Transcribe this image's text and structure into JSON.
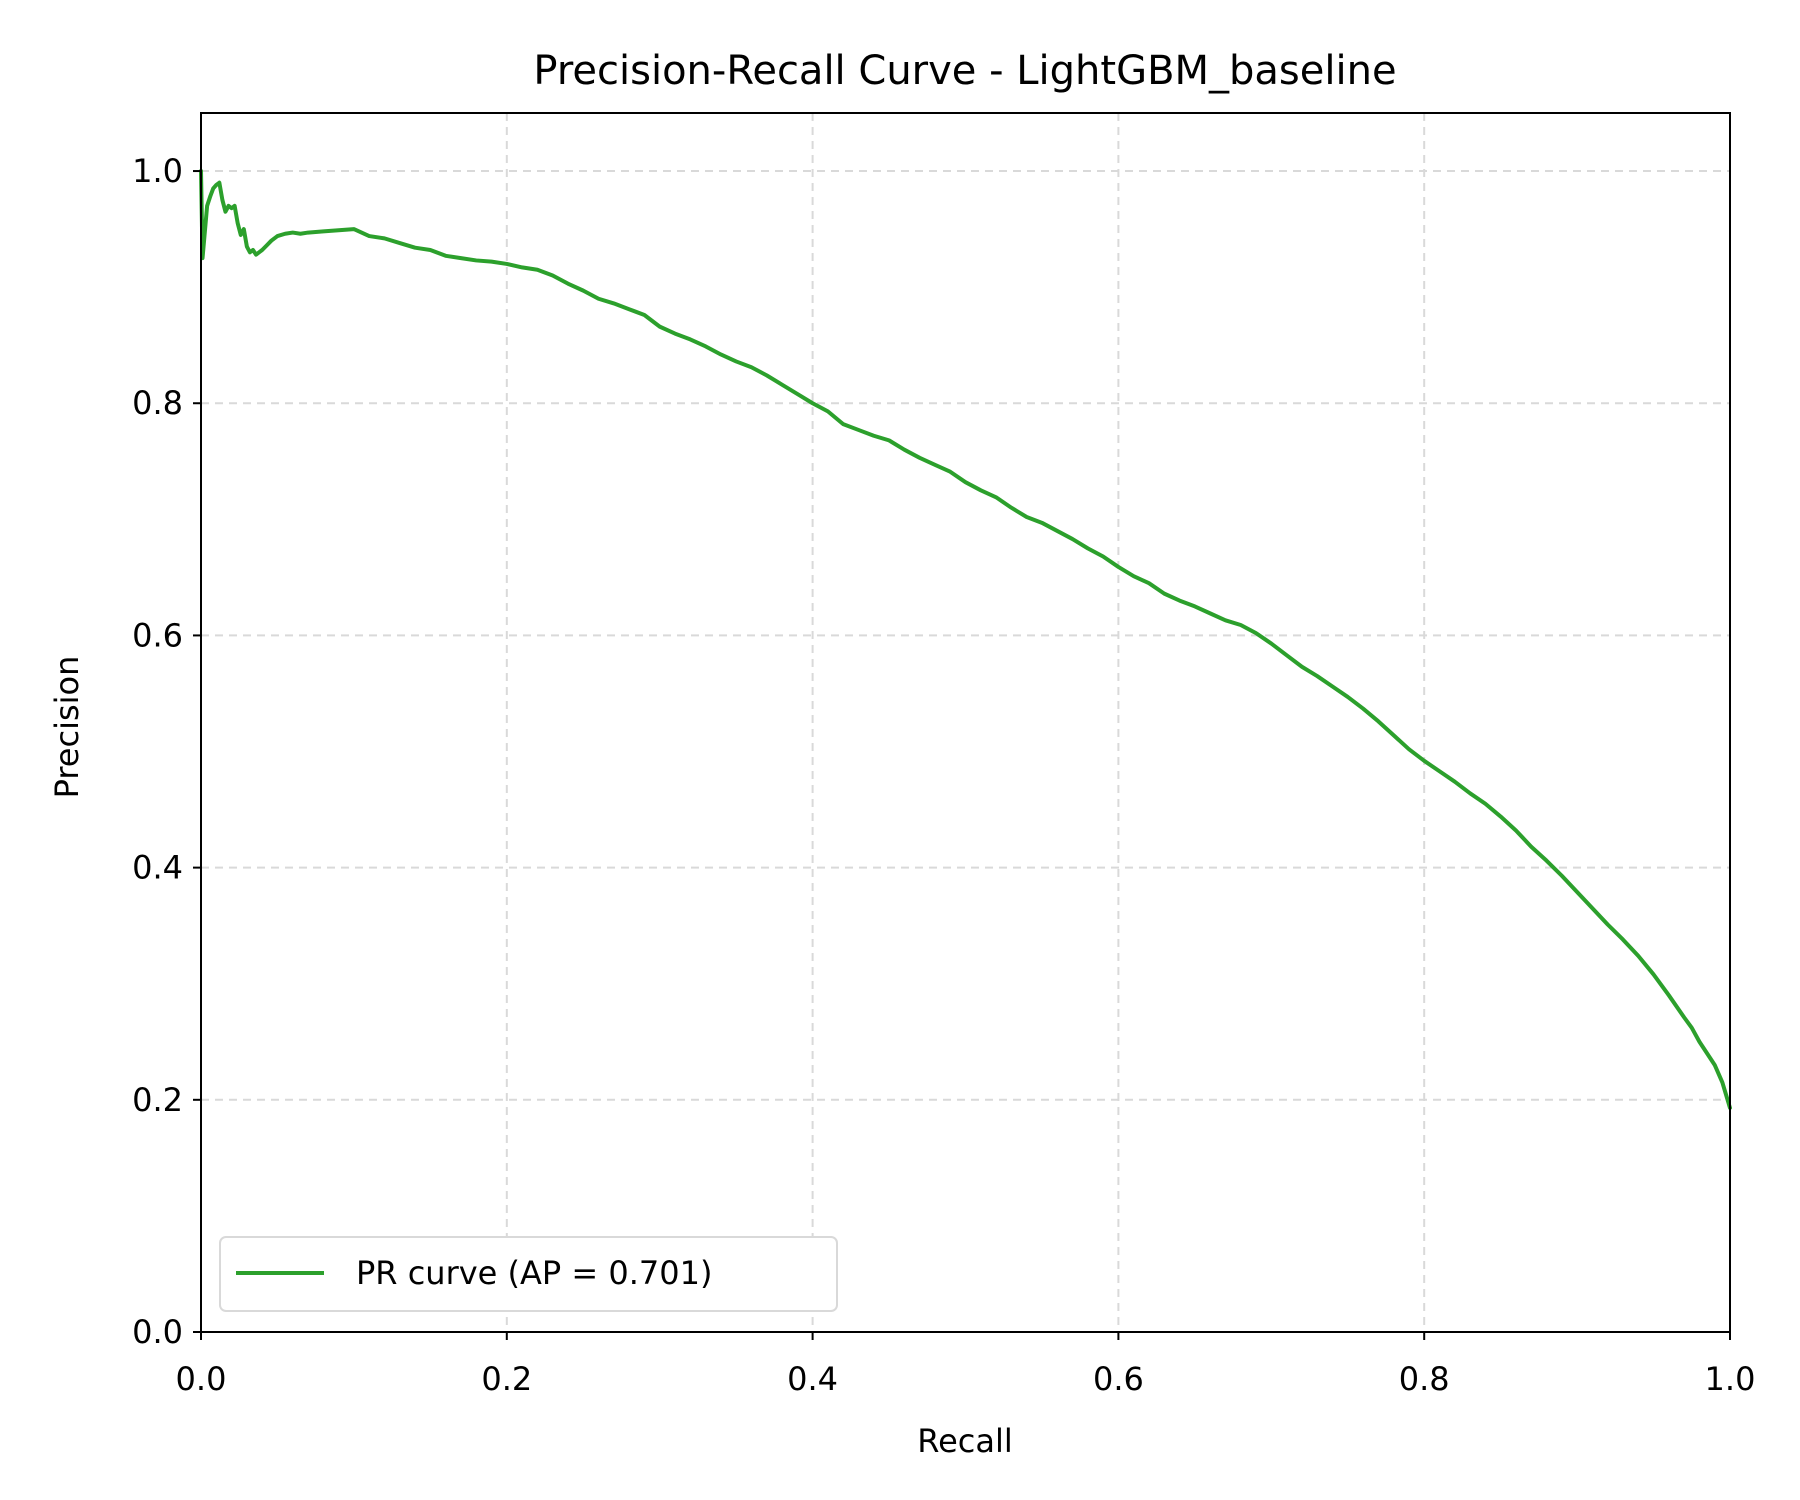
{
  "chart_data": {
    "type": "line",
    "title": "Precision-Recall Curve - LightGBM_baseline",
    "xlabel": "Recall",
    "ylabel": "Precision",
    "xlim": [
      0.0,
      1.0
    ],
    "ylim": [
      0.0,
      1.05
    ],
    "xticks": [
      "0.0",
      "0.2",
      "0.4",
      "0.6",
      "0.8",
      "1.0"
    ],
    "yticks": [
      "0.0",
      "0.2",
      "0.4",
      "0.6",
      "0.8",
      "1.0"
    ],
    "grid": true,
    "legend_position": "lower-left",
    "series": [
      {
        "name": "PR curve (AP = 0.701)",
        "color": "#2ca02c",
        "x": [
          0.0,
          0.001,
          0.002,
          0.003,
          0.004,
          0.006,
          0.008,
          0.01,
          0.012,
          0.014,
          0.016,
          0.018,
          0.02,
          0.022,
          0.024,
          0.026,
          0.028,
          0.03,
          0.032,
          0.034,
          0.036,
          0.038,
          0.04,
          0.043,
          0.046,
          0.05,
          0.055,
          0.06,
          0.065,
          0.07,
          0.08,
          0.09,
          0.1,
          0.11,
          0.12,
          0.13,
          0.14,
          0.15,
          0.16,
          0.17,
          0.18,
          0.19,
          0.2,
          0.21,
          0.22,
          0.23,
          0.24,
          0.25,
          0.26,
          0.27,
          0.28,
          0.29,
          0.3,
          0.31,
          0.32,
          0.33,
          0.34,
          0.35,
          0.36,
          0.37,
          0.38,
          0.39,
          0.4,
          0.41,
          0.42,
          0.43,
          0.44,
          0.45,
          0.46,
          0.47,
          0.48,
          0.49,
          0.5,
          0.51,
          0.52,
          0.53,
          0.54,
          0.55,
          0.56,
          0.57,
          0.58,
          0.59,
          0.6,
          0.61,
          0.62,
          0.63,
          0.64,
          0.65,
          0.66,
          0.67,
          0.68,
          0.69,
          0.7,
          0.71,
          0.72,
          0.73,
          0.74,
          0.75,
          0.76,
          0.77,
          0.78,
          0.79,
          0.8,
          0.81,
          0.82,
          0.83,
          0.84,
          0.85,
          0.86,
          0.87,
          0.88,
          0.89,
          0.9,
          0.91,
          0.92,
          0.93,
          0.94,
          0.95,
          0.96,
          0.97,
          0.975,
          0.98,
          0.985,
          0.99,
          0.995,
          1.0
        ],
        "y": [
          1.0,
          0.925,
          0.94,
          0.955,
          0.97,
          0.978,
          0.985,
          0.988,
          0.99,
          0.975,
          0.965,
          0.97,
          0.968,
          0.97,
          0.955,
          0.945,
          0.95,
          0.935,
          0.93,
          0.932,
          0.928,
          0.93,
          0.932,
          0.936,
          0.94,
          0.944,
          0.946,
          0.947,
          0.946,
          0.947,
          0.948,
          0.949,
          0.95,
          0.944,
          0.942,
          0.938,
          0.934,
          0.932,
          0.927,
          0.925,
          0.923,
          0.922,
          0.92,
          0.917,
          0.915,
          0.91,
          0.903,
          0.897,
          0.89,
          0.886,
          0.881,
          0.876,
          0.866,
          0.86,
          0.855,
          0.849,
          0.842,
          0.836,
          0.831,
          0.824,
          0.816,
          0.808,
          0.8,
          0.793,
          0.782,
          0.777,
          0.772,
          0.768,
          0.76,
          0.753,
          0.747,
          0.741,
          0.732,
          0.725,
          0.719,
          0.71,
          0.702,
          0.697,
          0.69,
          0.683,
          0.675,
          0.668,
          0.659,
          0.651,
          0.645,
          0.636,
          0.63,
          0.625,
          0.619,
          0.613,
          0.609,
          0.602,
          0.593,
          0.583,
          0.573,
          0.565,
          0.556,
          0.547,
          0.537,
          0.526,
          0.514,
          0.502,
          0.492,
          0.483,
          0.474,
          0.464,
          0.455,
          0.444,
          0.432,
          0.418,
          0.406,
          0.393,
          0.379,
          0.365,
          0.351,
          0.338,
          0.324,
          0.308,
          0.29,
          0.271,
          0.262,
          0.25,
          0.24,
          0.23,
          0.215,
          0.193
        ]
      }
    ],
    "legend": {
      "label": "PR curve (AP = 0.701)"
    }
  }
}
